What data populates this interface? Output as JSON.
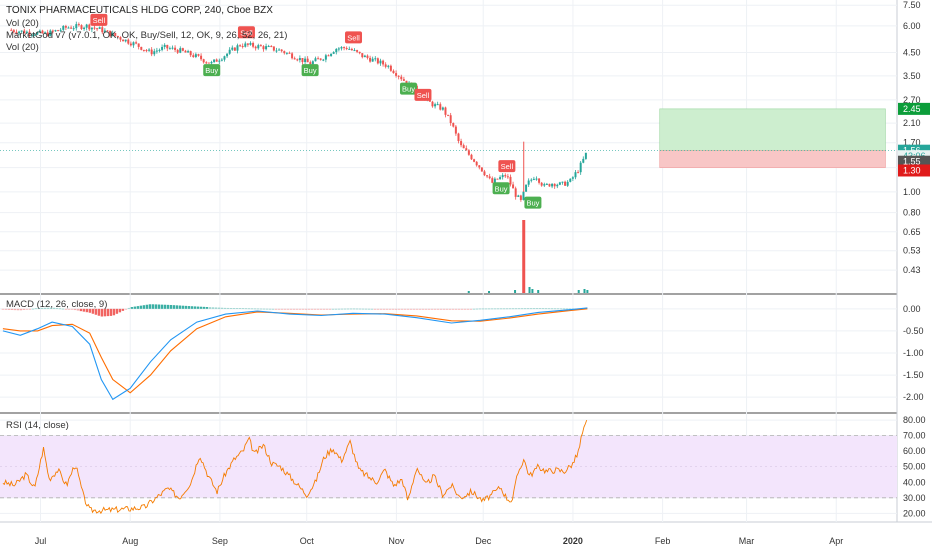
{
  "header": {
    "title": "TONIX PHARMACEUTICALS HLDG CORP, 240, Cboe BZX",
    "indicators": [
      "Vol (20)",
      "MarketGod v7 (v7.0.1, OK, OK, Buy/Sell, 12, OK, 9, 26, 52, 26, 21)",
      "Vol (20)"
    ]
  },
  "colors": {
    "up": "#26a69a",
    "down": "#ef5350",
    "signal_buy": "#4caf50",
    "signal_sell": "#ef5350",
    "macd_line": "#2196f3",
    "signal_line": "#ff6d00",
    "rsi_line": "#f57c00",
    "rsi_band": "#f3e5fc",
    "target_zone": "#cdeecf",
    "stop_zone": "#f8c6c6",
    "grid": "#eef1f5"
  },
  "chart_data": [
    {
      "name": "price",
      "type": "candlestick",
      "scale": "log",
      "x_ticks": [
        "Jul",
        "Aug",
        "Sep",
        "Oct",
        "Nov",
        "Dec",
        "2020",
        "Feb",
        "Mar",
        "Apr"
      ],
      "y_ticks": [
        "7.50",
        "6.00",
        "4.50",
        "3.50",
        "2.70",
        "2.10",
        "1.70",
        "1.30",
        "1.00",
        "0.80",
        "0.65",
        "0.53",
        "0.43"
      ],
      "ylim": [
        0.37,
        7.6
      ],
      "close_path": [
        {
          "d": "Jun 20",
          "v": 5.75
        },
        {
          "d": "Jun 27",
          "v": 5.6
        },
        {
          "d": "Jul 3",
          "v": 5.5
        },
        {
          "d": "Jul 10",
          "v": 5.9
        },
        {
          "d": "Jul 17",
          "v": 6.0
        },
        {
          "d": "Jul 22",
          "v": 5.75
        },
        {
          "d": "Jul 28",
          "v": 5.3
        },
        {
          "d": "Aug 3",
          "v": 4.9
        },
        {
          "d": "Aug 8",
          "v": 4.5
        },
        {
          "d": "Aug 13",
          "v": 4.75
        },
        {
          "d": "Aug 18",
          "v": 4.6
        },
        {
          "d": "Aug 24",
          "v": 4.3
        },
        {
          "d": "Aug 29",
          "v": 4.0
        },
        {
          "d": "Sep 3",
          "v": 4.4
        },
        {
          "d": "Sep 8",
          "v": 4.9
        },
        {
          "d": "Sep 12",
          "v": 4.85
        },
        {
          "d": "Sep 17",
          "v": 4.75
        },
        {
          "d": "Sep 22",
          "v": 4.6
        },
        {
          "d": "Sep 27",
          "v": 4.3
        },
        {
          "d": "Oct 2",
          "v": 4.0
        },
        {
          "d": "Oct 7",
          "v": 4.3
        },
        {
          "d": "Oct 11",
          "v": 4.7
        },
        {
          "d": "Oct 15",
          "v": 4.75
        },
        {
          "d": "Oct 20",
          "v": 4.35
        },
        {
          "d": "Oct 25",
          "v": 4.1
        },
        {
          "d": "Oct 29",
          "v": 3.9
        },
        {
          "d": "Nov 2",
          "v": 3.5
        },
        {
          "d": "Nov 5",
          "v": 3.2
        },
        {
          "d": "Nov 8",
          "v": 3.0
        },
        {
          "d": "Nov 11",
          "v": 2.7
        },
        {
          "d": "Nov 14",
          "v": 2.55
        },
        {
          "d": "Nov 17",
          "v": 2.45
        },
        {
          "d": "Nov 20",
          "v": 2.1
        },
        {
          "d": "Nov 23",
          "v": 1.65
        },
        {
          "d": "Nov 27",
          "v": 1.45
        },
        {
          "d": "Dec 1",
          "v": 1.25
        },
        {
          "d": "Dec 4",
          "v": 1.1
        },
        {
          "d": "Dec 6",
          "v": 1.15
        },
        {
          "d": "Dec 9",
          "v": 1.2
        },
        {
          "d": "Dec 12",
          "v": 0.98
        },
        {
          "d": "Dec 14",
          "v": 0.9
        },
        {
          "d": "Dec 16",
          "v": 1.08
        },
        {
          "d": "Dec 19",
          "v": 1.2
        },
        {
          "d": "Dec 22",
          "v": 1.06
        },
        {
          "d": "Dec 25",
          "v": 1.1
        },
        {
          "d": "Dec 28",
          "v": 1.08
        },
        {
          "d": "Dec 31",
          "v": 1.12
        },
        {
          "d": "Jan 3",
          "v": 1.28
        },
        {
          "d": "Jan 5",
          "v": 1.45
        },
        {
          "d": "Jan 6",
          "v": 1.56
        }
      ],
      "signals": [
        {
          "d": "Jul 21",
          "label": "Sell",
          "kind": "sell",
          "v": 6.4
        },
        {
          "d": "Aug 29",
          "label": "Buy",
          "kind": "buy",
          "v": 3.72
        },
        {
          "d": "Sep 10",
          "label": "Sell",
          "kind": "sell",
          "v": 5.6
        },
        {
          "d": "Oct 2",
          "label": "Buy",
          "kind": "buy",
          "v": 3.72
        },
        {
          "d": "Oct 17",
          "label": "Sell",
          "kind": "sell",
          "v": 5.3
        },
        {
          "d": "Nov 5",
          "label": "Buy",
          "kind": "buy",
          "v": 3.05
        },
        {
          "d": "Nov 10",
          "label": "Sell",
          "kind": "sell",
          "v": 2.85
        },
        {
          "d": "Dec 9",
          "label": "Sell",
          "kind": "sell",
          "v": 1.32
        },
        {
          "d": "Dec 7",
          "label": "Buy",
          "kind": "buy",
          "v": 1.04
        },
        {
          "d": "Dec 18",
          "label": "Buy",
          "kind": "buy",
          "v": 0.89
        }
      ],
      "volume_spike": {
        "d": "Dec 15",
        "label": "volume spike"
      },
      "position": {
        "from": "Jan 31",
        "to": "Apr 18",
        "target": 2.45,
        "entry": 1.56,
        "stop": 1.3
      },
      "last_price_line": 1.56,
      "price_labels": [
        {
          "text": "2.45",
          "v": 2.45,
          "bg": "#0c9d3a",
          "fg": "#ffffff"
        },
        {
          "text": "1.56",
          "v": 1.56,
          "bg": "#26a69a",
          "fg": "#ffffff"
        },
        {
          "text": "43:06",
          "v": 1.47,
          "bg": "#e9f3f2",
          "fg": "#26a69a"
        },
        {
          "text": "1.55",
          "v": 1.385,
          "bg": "#555555",
          "fg": "#ffffff"
        },
        {
          "text": "1.30",
          "v": 1.26,
          "bg": "#e01a1a",
          "fg": "#ffffff"
        }
      ]
    },
    {
      "name": "macd",
      "type": "line",
      "title": "MACD (12, 26, close, 9)",
      "y_ticks": [
        "0.00",
        "-0.50",
        "-1.00",
        "-1.50",
        "-2.00"
      ],
      "ylim": [
        -2.2,
        0.2
      ],
      "macd": [
        {
          "d": "Jun 18",
          "v": -0.5
        },
        {
          "d": "Jun 24",
          "v": -0.6
        },
        {
          "d": "Jun 30",
          "v": -0.45
        },
        {
          "d": "Jul 5",
          "v": -0.3
        },
        {
          "d": "Jul 12",
          "v": -0.4
        },
        {
          "d": "Jul 18",
          "v": -0.8
        },
        {
          "d": "Jul 22",
          "v": -1.6
        },
        {
          "d": "Jul 26",
          "v": -2.05
        },
        {
          "d": "Aug 1",
          "v": -1.8
        },
        {
          "d": "Aug 8",
          "v": -1.2
        },
        {
          "d": "Aug 15",
          "v": -0.7
        },
        {
          "d": "Aug 24",
          "v": -0.3
        },
        {
          "d": "Sep 3",
          "v": -0.12
        },
        {
          "d": "Sep 14",
          "v": -0.05
        },
        {
          "d": "Sep 25",
          "v": -0.12
        },
        {
          "d": "Oct 6",
          "v": -0.15
        },
        {
          "d": "Oct 17",
          "v": -0.1
        },
        {
          "d": "Oct 28",
          "v": -0.12
        },
        {
          "d": "Nov 8",
          "v": -0.2
        },
        {
          "d": "Nov 20",
          "v": -0.32
        },
        {
          "d": "Nov 30",
          "v": -0.26
        },
        {
          "d": "Dec 10",
          "v": -0.18
        },
        {
          "d": "Dec 20",
          "v": -0.08
        },
        {
          "d": "Dec 31",
          "v": -0.02
        },
        {
          "d": "Jan 6",
          "v": 0.02
        }
      ],
      "signal": [
        {
          "d": "Jun 18",
          "v": -0.45
        },
        {
          "d": "Jun 24",
          "v": -0.5
        },
        {
          "d": "Jun 30",
          "v": -0.5
        },
        {
          "d": "Jul 5",
          "v": -0.38
        },
        {
          "d": "Jul 12",
          "v": -0.35
        },
        {
          "d": "Jul 18",
          "v": -0.55
        },
        {
          "d": "Jul 22",
          "v": -1.1
        },
        {
          "d": "Jul 26",
          "v": -1.6
        },
        {
          "d": "Aug 1",
          "v": -1.9
        },
        {
          "d": "Aug 8",
          "v": -1.5
        },
        {
          "d": "Aug 15",
          "v": -0.95
        },
        {
          "d": "Aug 24",
          "v": -0.45
        },
        {
          "d": "Sep 3",
          "v": -0.18
        },
        {
          "d": "Sep 14",
          "v": -0.07
        },
        {
          "d": "Sep 25",
          "v": -0.1
        },
        {
          "d": "Oct 6",
          "v": -0.14
        },
        {
          "d": "Oct 17",
          "v": -0.12
        },
        {
          "d": "Oct 28",
          "v": -0.11
        },
        {
          "d": "Nov 8",
          "v": -0.16
        },
        {
          "d": "Nov 20",
          "v": -0.27
        },
        {
          "d": "Nov 30",
          "v": -0.28
        },
        {
          "d": "Dec 10",
          "v": -0.21
        },
        {
          "d": "Dec 20",
          "v": -0.12
        },
        {
          "d": "Dec 31",
          "v": -0.04
        },
        {
          "d": "Jan 6",
          "v": 0.0
        }
      ]
    },
    {
      "name": "rsi",
      "type": "line",
      "title": "RSI (14, close)",
      "y_ticks": [
        "80.00",
        "70.00",
        "60.00",
        "50.00",
        "40.00",
        "30.00",
        "20.00"
      ],
      "ylim": [
        17,
        82
      ],
      "band": [
        30,
        70
      ],
      "values": [
        {
          "d": "Jun 18",
          "v": 40
        },
        {
          "d": "Jun 22",
          "v": 38
        },
        {
          "d": "Jun 26",
          "v": 45
        },
        {
          "d": "Jun 29",
          "v": 36
        },
        {
          "d": "Jul 2",
          "v": 62
        },
        {
          "d": "Jul 4",
          "v": 42
        },
        {
          "d": "Jul 7",
          "v": 48
        },
        {
          "d": "Jul 10",
          "v": 38
        },
        {
          "d": "Jul 13",
          "v": 52
        },
        {
          "d": "Jul 16",
          "v": 30
        },
        {
          "d": "Jul 18",
          "v": 22
        },
        {
          "d": "Jul 24",
          "v": 22
        },
        {
          "d": "Aug 1",
          "v": 23
        },
        {
          "d": "Aug 6",
          "v": 24
        },
        {
          "d": "Aug 10",
          "v": 30
        },
        {
          "d": "Aug 14",
          "v": 36
        },
        {
          "d": "Aug 18",
          "v": 30
        },
        {
          "d": "Aug 22",
          "v": 40
        },
        {
          "d": "Aug 25",
          "v": 58
        },
        {
          "d": "Aug 28",
          "v": 44
        },
        {
          "d": "Aug 31",
          "v": 34
        },
        {
          "d": "Sep 3",
          "v": 46
        },
        {
          "d": "Sep 6",
          "v": 55
        },
        {
          "d": "Sep 9",
          "v": 60
        },
        {
          "d": "Sep 11",
          "v": 68
        },
        {
          "d": "Sep 13",
          "v": 58
        },
        {
          "d": "Sep 16",
          "v": 64
        },
        {
          "d": "Sep 19",
          "v": 52
        },
        {
          "d": "Sep 22",
          "v": 50
        },
        {
          "d": "Sep 25",
          "v": 44
        },
        {
          "d": "Sep 28",
          "v": 38
        },
        {
          "d": "Oct 1",
          "v": 32
        },
        {
          "d": "Oct 4",
          "v": 40
        },
        {
          "d": "Oct 7",
          "v": 56
        },
        {
          "d": "Oct 10",
          "v": 62
        },
        {
          "d": "Oct 13",
          "v": 54
        },
        {
          "d": "Oct 16",
          "v": 66
        },
        {
          "d": "Oct 19",
          "v": 48
        },
        {
          "d": "Oct 22",
          "v": 44
        },
        {
          "d": "Oct 25",
          "v": 40
        },
        {
          "d": "Oct 28",
          "v": 48
        },
        {
          "d": "Oct 31",
          "v": 38
        },
        {
          "d": "Nov 3",
          "v": 42
        },
        {
          "d": "Nov 5",
          "v": 28
        },
        {
          "d": "Nov 8",
          "v": 50
        },
        {
          "d": "Nov 11",
          "v": 38
        },
        {
          "d": "Nov 14",
          "v": 44
        },
        {
          "d": "Nov 17",
          "v": 32
        },
        {
          "d": "Nov 20",
          "v": 38
        },
        {
          "d": "Nov 23",
          "v": 30
        },
        {
          "d": "Nov 27",
          "v": 34
        },
        {
          "d": "Dec 1",
          "v": 28
        },
        {
          "d": "Dec 4",
          "v": 32
        },
        {
          "d": "Dec 7",
          "v": 37
        },
        {
          "d": "Dec 9",
          "v": 30
        },
        {
          "d": "Dec 11",
          "v": 28
        },
        {
          "d": "Dec 13",
          "v": 46
        },
        {
          "d": "Dec 15",
          "v": 55
        },
        {
          "d": "Dec 17",
          "v": 44
        },
        {
          "d": "Dec 20",
          "v": 50
        },
        {
          "d": "Dec 23",
          "v": 47
        },
        {
          "d": "Dec 26",
          "v": 48
        },
        {
          "d": "Dec 29",
          "v": 47
        },
        {
          "d": "Jan 1",
          "v": 52
        },
        {
          "d": "Jan 3",
          "v": 60
        },
        {
          "d": "Jan 4",
          "v": 70
        },
        {
          "d": "Jan 6",
          "v": 80
        }
      ]
    }
  ]
}
